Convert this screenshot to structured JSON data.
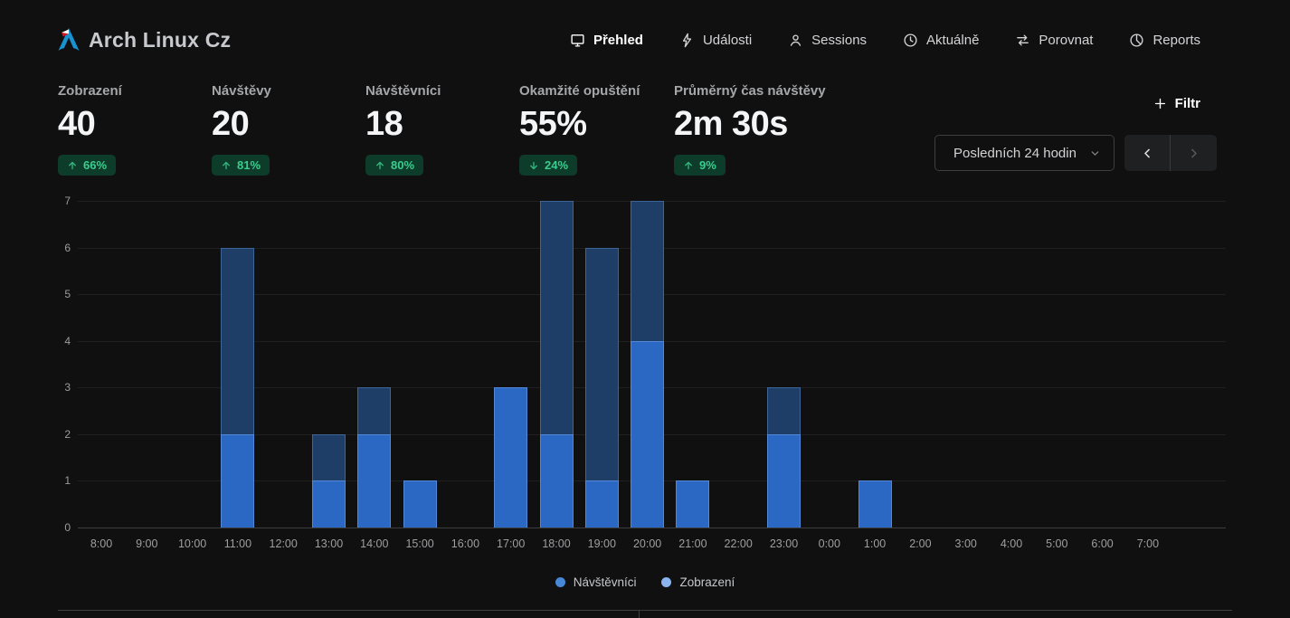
{
  "header": {
    "site_title": "Arch Linux Cz",
    "nav": [
      {
        "label": "Přehled",
        "icon": "monitor-icon",
        "active": true
      },
      {
        "label": "Události",
        "icon": "lightning-icon",
        "active": false
      },
      {
        "label": "Sessions",
        "icon": "person-icon",
        "active": false
      },
      {
        "label": "Aktuálně",
        "icon": "clock-icon",
        "active": false
      },
      {
        "label": "Porovnat",
        "icon": "compare-icon",
        "active": false
      },
      {
        "label": "Reports",
        "icon": "pie-chart-icon",
        "active": false
      }
    ]
  },
  "metrics": [
    {
      "label": "Zobrazení",
      "value": "40",
      "change": "66%",
      "direction": "up"
    },
    {
      "label": "Návštěvy",
      "value": "20",
      "change": "81%",
      "direction": "up"
    },
    {
      "label": "Návštěvníci",
      "value": "18",
      "change": "80%",
      "direction": "up"
    },
    {
      "label": "Okamžité opuštění",
      "value": "55%",
      "change": "24%",
      "direction": "down"
    },
    {
      "label": "Průměrný čas návštěvy",
      "value": "2m 30s",
      "change": "9%",
      "direction": "up"
    }
  ],
  "controls": {
    "filter_label": "Filtr",
    "date_range": "Posledních 24 hodin"
  },
  "chart_data": {
    "type": "bar",
    "subtype": "overlayed-bars (views behind, visitors in front)",
    "title": "",
    "xlabel": "",
    "ylabel": "",
    "categories": [
      "8:00",
      "9:00",
      "10:00",
      "11:00",
      "12:00",
      "13:00",
      "14:00",
      "15:00",
      "16:00",
      "17:00",
      "18:00",
      "19:00",
      "20:00",
      "21:00",
      "22:00",
      "23:00",
      "0:00",
      "1:00",
      "2:00",
      "3:00",
      "4:00",
      "5:00",
      "6:00",
      "7:00"
    ],
    "series": [
      {
        "name": "Zobrazení",
        "bar_color": "#1e3e67",
        "legend_color": "#8ab3ef",
        "values": [
          0,
          0,
          0,
          6,
          0,
          2,
          3,
          1,
          0,
          3,
          7,
          6,
          7,
          1,
          0,
          3,
          0,
          1,
          0,
          0,
          0,
          0,
          0,
          0
        ]
      },
      {
        "name": "Návštěvníci",
        "bar_color": "#2a68c4",
        "legend_color": "#4787d7",
        "values": [
          0,
          0,
          0,
          2,
          0,
          1,
          2,
          1,
          0,
          3,
          2,
          1,
          4,
          1,
          0,
          2,
          0,
          1,
          0,
          0,
          0,
          0,
          0,
          0
        ]
      }
    ],
    "ylim": [
      0,
      7
    ],
    "yticks": [
      0,
      1,
      2,
      3,
      4,
      5,
      6,
      7
    ],
    "grid": true,
    "legend_position": "bottom"
  },
  "colors": {
    "background": "#101011",
    "visitors_bar": "#2a68c4",
    "views_bar": "#1e3e67",
    "badge_bg": "#0e3c2a",
    "badge_text": "#3bcd8e",
    "arch_blue": "#1793d1",
    "flag_red": "#d7141a",
    "flag_white": "#ffffff"
  }
}
